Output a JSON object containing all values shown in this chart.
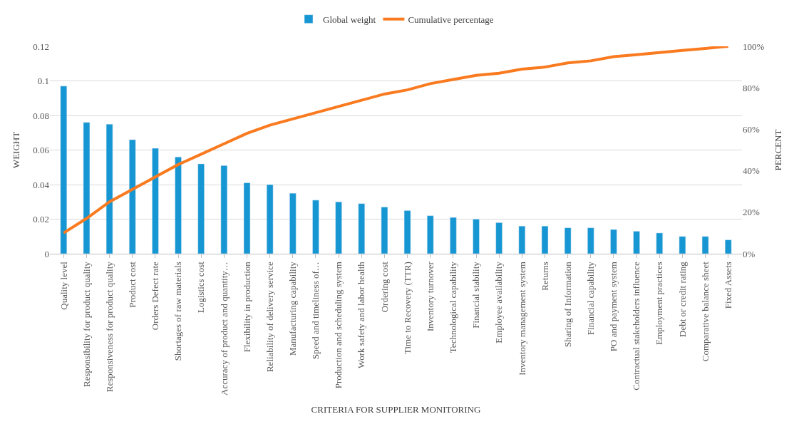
{
  "chart_data": {
    "type": "bar",
    "xlabel": "CRITERIA FOR SUPPLIER MONITORING",
    "ylabel": "WEIGHT",
    "y2label": "PERCENT",
    "categories": [
      "Quality level",
      "Responsibility for product quality",
      "Responsiveness for product quality",
      "Product cost",
      "Orders Defect rate",
      "Shortages of raw materials",
      "Logistics cost",
      "Accuracy of product and quantity…",
      "Flexibility in production",
      "Reliability of delivery service",
      "Manufacturing capability",
      "Speed and timeliness of…",
      "Production and scheduling system",
      "Work safety and labor health",
      "Ordering cost",
      "Time to Recovery (TTR)",
      "Inventory turnover",
      "Technological capability",
      "Financial stability",
      "Employee availability",
      "Inventory management system",
      "Returns",
      "Sharing of Information",
      "Financial capability",
      "PO and payment system",
      "Contractual stakeholders influence",
      "Employment practices",
      "Debt or credit rating",
      "Comparative balance sheet",
      "Fixed Assets"
    ],
    "series": [
      {
        "name": "Global weight",
        "color": "#1696d2",
        "values": [
          0.097,
          0.076,
          0.075,
          0.066,
          0.061,
          0.056,
          0.052,
          0.051,
          0.041,
          0.04,
          0.035,
          0.031,
          0.03,
          0.029,
          0.027,
          0.025,
          0.022,
          0.021,
          0.02,
          0.018,
          0.016,
          0.016,
          0.015,
          0.015,
          0.014,
          0.013,
          0.012,
          0.01,
          0.01,
          0.008
        ]
      },
      {
        "name": "Cumulative percentage",
        "type": "line",
        "axis": "y2",
        "color": "#f97a1f",
        "values": [
          10,
          17,
          25,
          31,
          37,
          43,
          48,
          53,
          58,
          62,
          65,
          68,
          71,
          74,
          77,
          79,
          82,
          84,
          86,
          87,
          89,
          90,
          92,
          93,
          95,
          96,
          97,
          98,
          99,
          100
        ]
      }
    ],
    "ylim": [
      0,
      0.12
    ],
    "yticks": [
      0,
      0.02,
      0.04,
      0.06,
      0.08,
      0.1,
      0.12
    ],
    "y2lim": [
      0,
      100
    ],
    "y2ticks": [
      {
        "value": 0,
        "label": "0%"
      },
      {
        "value": 20,
        "label": "20%"
      },
      {
        "value": 40,
        "label": "40%"
      },
      {
        "value": 60,
        "label": "60%"
      },
      {
        "value": 80,
        "label": "80%"
      },
      {
        "value": 100,
        "label": "100%"
      }
    ],
    "grid": "y",
    "legend": "top",
    "line_style": "solid",
    "marker": "none"
  }
}
